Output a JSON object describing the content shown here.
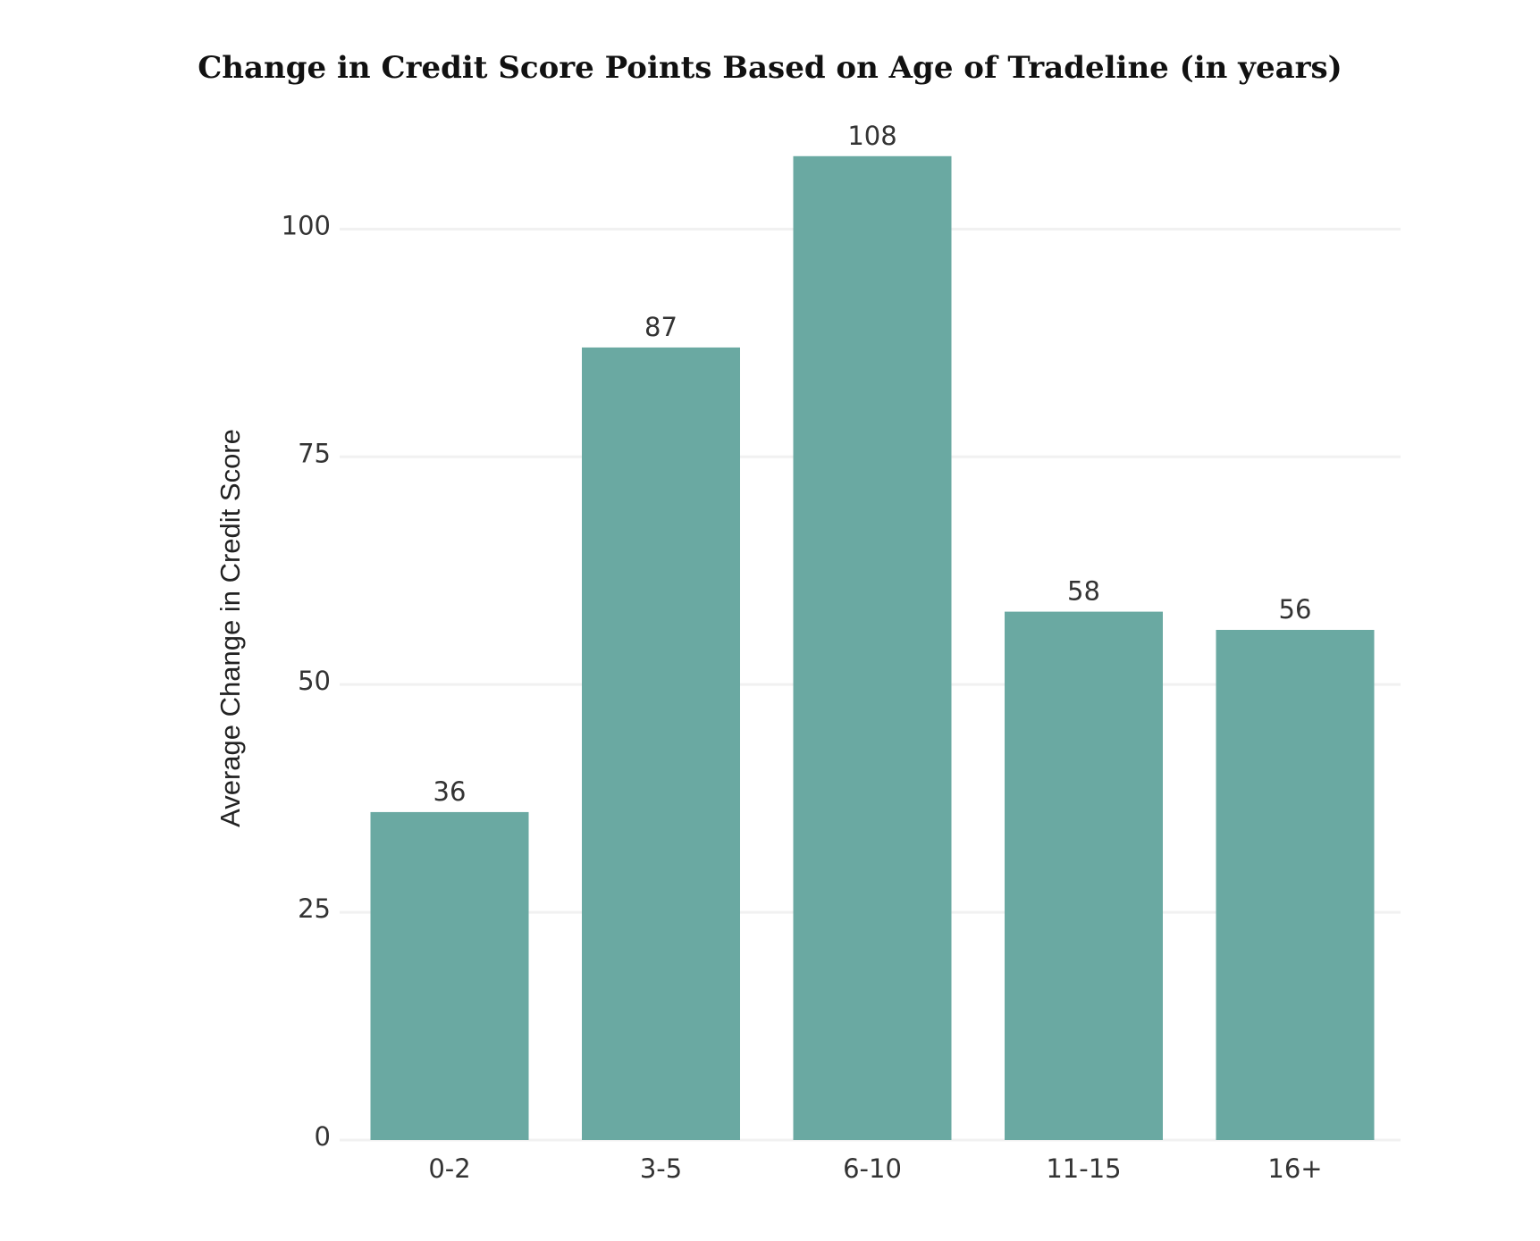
{
  "chart_data": {
    "type": "bar",
    "title": "Change in Credit Score Points Based on Age of Tradeline (in years)",
    "xlabel": "",
    "ylabel": "Average Change in Credit Score",
    "categories": [
      "0-2",
      "3-5",
      "6-10",
      "11-15",
      "16+"
    ],
    "values": [
      36,
      87,
      108,
      58,
      56
    ],
    "data_labels": [
      "36",
      "87",
      "108",
      "58",
      "56"
    ],
    "y_ticks": [
      0,
      25,
      50,
      75,
      100
    ],
    "y_tick_labels": [
      "0",
      "25",
      "50",
      "75",
      "100"
    ],
    "ylim": [
      0,
      112
    ],
    "grid": true,
    "legend": "none",
    "bar_color": "#6aa9a2",
    "grid_color": "#f1f1f1"
  }
}
